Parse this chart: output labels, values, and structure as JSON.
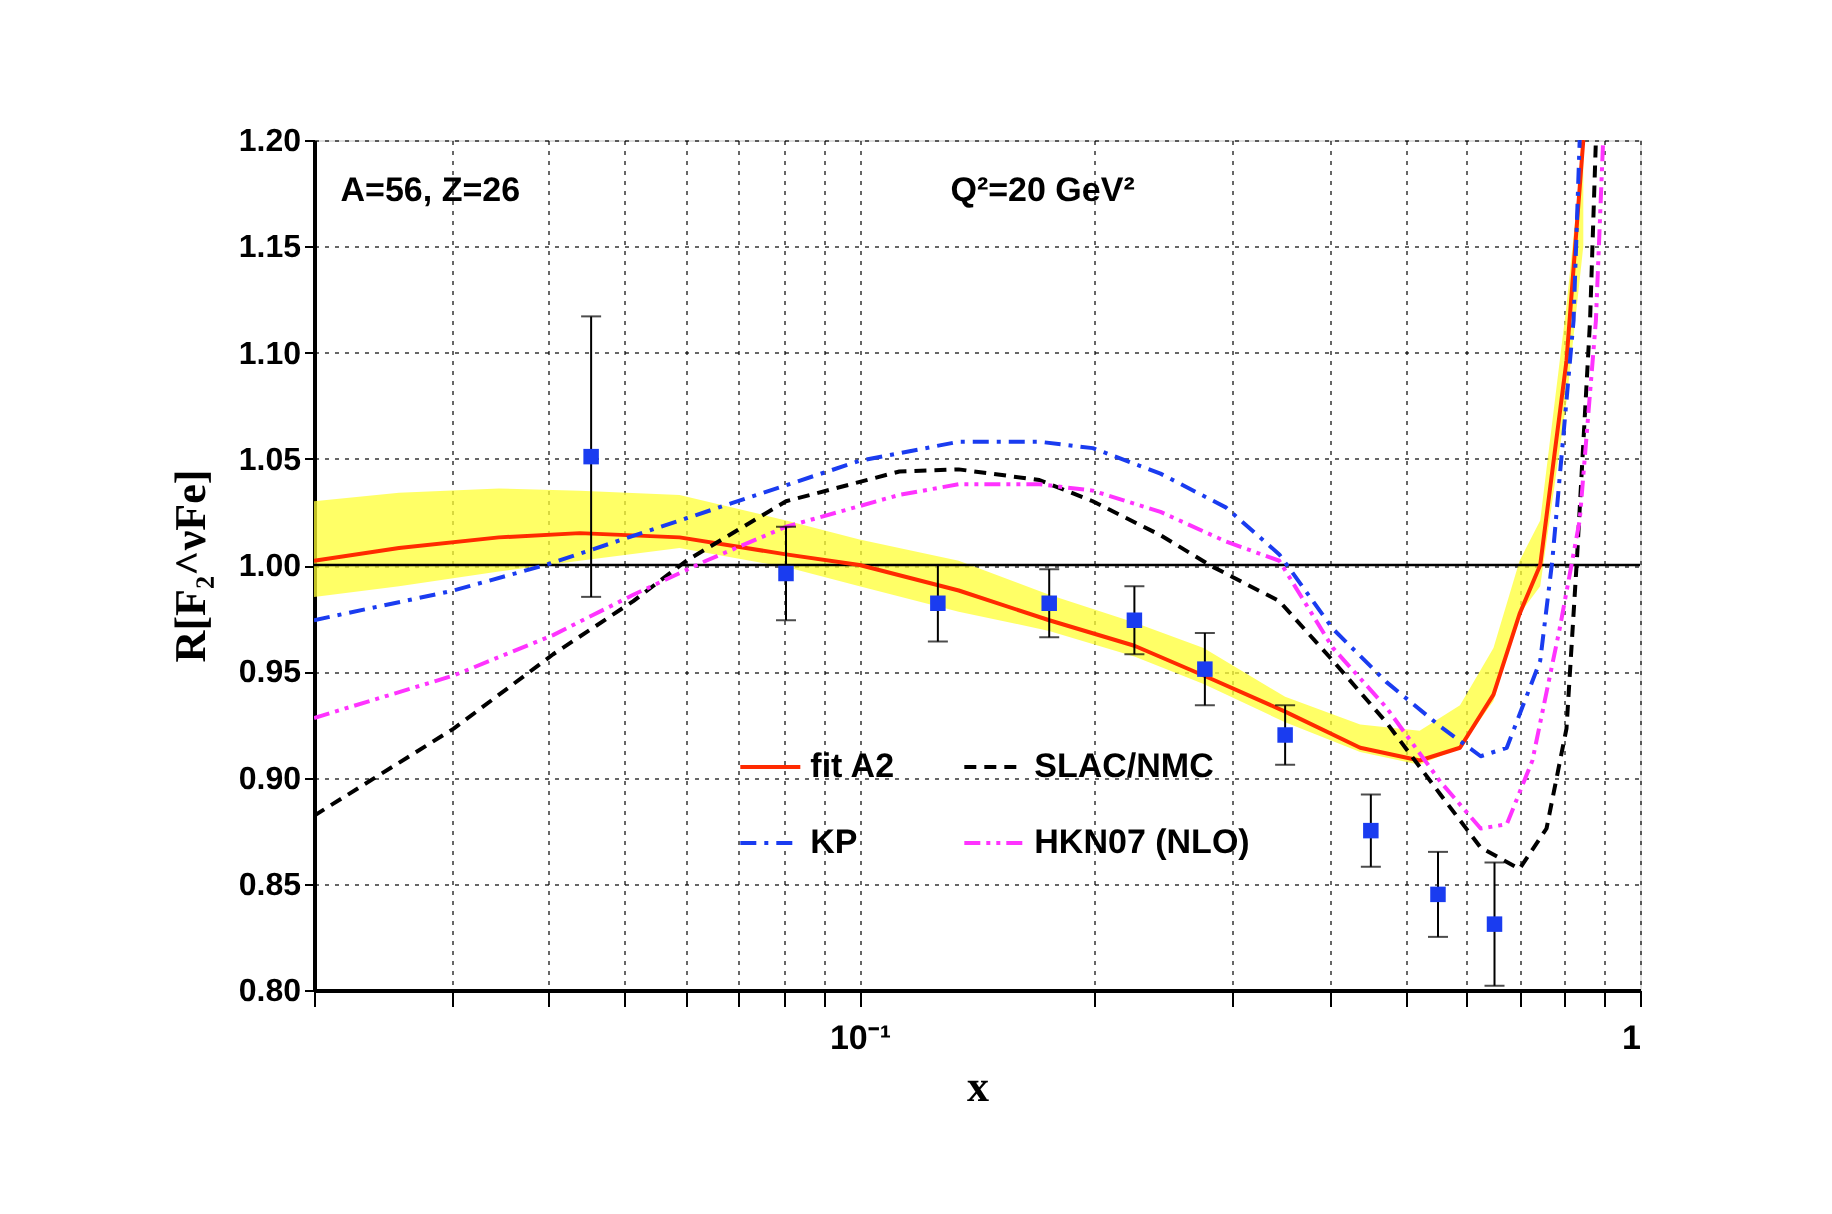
{
  "chart_data": {
    "type": "line",
    "xlabel": "x",
    "ylabel": "R[F₂^νFe]",
    "annotations": [
      "A=56, Z=26",
      "Q²=20 GeV²"
    ],
    "log": "x",
    "grid": true,
    "legend": "bottom",
    "xlim": [
      0.02,
      1
    ],
    "ylim": [
      0.8,
      1.2
    ],
    "xticks": [
      {
        "value": 0.02,
        "label": null
      },
      {
        "value": 0.03,
        "label": null
      },
      {
        "value": 0.04,
        "label": null
      },
      {
        "value": 0.05,
        "label": null
      },
      {
        "value": 0.06,
        "label": null
      },
      {
        "value": 0.07,
        "label": null
      },
      {
        "value": 0.08,
        "label": null
      },
      {
        "value": 0.09,
        "label": null
      },
      {
        "value": 0.1,
        "label": "10⁻¹"
      },
      {
        "value": 0.2,
        "label": null
      },
      {
        "value": 0.3,
        "label": null
      },
      {
        "value": 0.4,
        "label": null
      },
      {
        "value": 0.5,
        "label": null
      },
      {
        "value": 0.6,
        "label": null
      },
      {
        "value": 0.7,
        "label": null
      },
      {
        "value": 0.8,
        "label": null
      },
      {
        "value": 0.9,
        "label": null
      },
      1
    ],
    "yticks": [
      {
        "value": 0.8,
        "label": "0.80"
      },
      {
        "value": 0.85,
        "label": "0.85"
      },
      {
        "value": 0.9,
        "label": "0.90"
      },
      {
        "value": 0.95,
        "label": "0.95"
      },
      {
        "value": 1.0,
        "label": "1.00"
      },
      {
        "value": 1.05,
        "label": "1.05"
      },
      {
        "value": 1.1,
        "label": "1.10"
      },
      {
        "value": 1.15,
        "label": "1.15"
      },
      {
        "value": 1.2,
        "label": "1.20"
      }
    ],
    "ref_lines": [
      {
        "axis": "y",
        "value": 1.0,
        "color": "#000000",
        "line_style": "solid"
      }
    ],
    "series": [
      {
        "name": "fit A2",
        "color": "#ff2a00",
        "line_style": "solid",
        "x": [
          0.02,
          0.0257,
          0.0345,
          0.0438,
          0.0588,
          0.0805,
          0.1,
          0.134,
          0.175,
          0.225,
          0.276,
          0.351,
          0.438,
          0.522,
          0.588,
          0.649,
          0.701,
          0.745,
          0.805,
          0.846
        ],
        "values": [
          1.002,
          1.008,
          1.013,
          1.015,
          1.013,
          1.005,
          1.0,
          0.988,
          0.974,
          0.962,
          0.948,
          0.931,
          0.914,
          0.908,
          0.914,
          0.939,
          0.977,
          1.0,
          1.096,
          1.2
        ],
        "lower": [
          0.985,
          0.99,
          0.997,
          1.002,
          1.008,
          0.999,
          0.99,
          0.978,
          0.969,
          0.957,
          0.944,
          0.926,
          0.912,
          0.906,
          0.914,
          0.936,
          0.977,
          0.99,
          1.077,
          1.15
        ],
        "upper": [
          1.03,
          1.034,
          1.036,
          1.035,
          1.033,
          1.021,
          1.012,
          1.002,
          0.986,
          0.973,
          0.961,
          0.938,
          0.925,
          0.922,
          0.934,
          0.961,
          1.002,
          1.021,
          1.122,
          1.2
        ]
      },
      {
        "name": "KP",
        "color": "#1a3cf0",
        "line_style": "dashdot",
        "x": [
          0.02,
          0.0302,
          0.0396,
          0.06,
          0.1,
          0.134,
          0.17,
          0.199,
          0.243,
          0.295,
          0.345,
          0.404,
          0.473,
          0.555,
          0.625,
          0.675,
          0.745,
          0.772,
          0.822,
          0.837
        ],
        "values": [
          0.974,
          0.988,
          1.0,
          1.022,
          1.049,
          1.058,
          1.058,
          1.055,
          1.043,
          1.027,
          1.005,
          0.97,
          0.945,
          0.924,
          0.91,
          0.914,
          0.955,
          1.002,
          1.115,
          1.2
        ]
      },
      {
        "name": "SLAC/NMC",
        "color": "#000000",
        "line_style": "dashed",
        "x": [
          0.02,
          0.0302,
          0.0405,
          0.0513,
          0.06,
          0.0805,
          0.1125,
          0.134,
          0.17,
          0.199,
          0.243,
          0.284,
          0.345,
          0.404,
          0.473,
          0.555,
          0.625,
          0.701,
          0.759,
          0.805,
          0.83,
          0.863,
          0.878
        ],
        "values": [
          0.882,
          0.923,
          0.958,
          0.983,
          1.002,
          1.03,
          1.044,
          1.045,
          1.04,
          1.03,
          1.014,
          0.999,
          0.983,
          0.955,
          0.926,
          0.892,
          0.867,
          0.857,
          0.876,
          0.923,
          1.002,
          1.115,
          1.2
        ]
      },
      {
        "name": "HKN07 (NLO)",
        "color": "#ff33ff",
        "line_style": "dashdotdot",
        "x": [
          0.02,
          0.0302,
          0.0405,
          0.0513,
          0.0636,
          0.0805,
          0.1125,
          0.134,
          0.17,
          0.199,
          0.243,
          0.295,
          0.345,
          0.404,
          0.473,
          0.555,
          0.625,
          0.675,
          0.728,
          0.789,
          0.837,
          0.878,
          0.897
        ],
        "values": [
          0.928,
          0.948,
          0.967,
          0.986,
          1.002,
          1.018,
          1.033,
          1.038,
          1.038,
          1.035,
          1.025,
          1.011,
          1.002,
          0.961,
          0.933,
          0.898,
          0.876,
          0.878,
          0.908,
          0.97,
          1.021,
          1.115,
          1.2
        ]
      },
      {
        "type": "scatter",
        "color": "#1a3cf0",
        "marker": "square",
        "x": [
          0.0453,
          0.0805,
          0.126,
          0.175,
          0.225,
          0.277,
          0.351,
          0.452,
          0.551,
          0.651
        ],
        "values": [
          1.051,
          0.996,
          0.982,
          0.982,
          0.974,
          0.951,
          0.92,
          0.875,
          0.845,
          0.831
        ],
        "errors": [
          0.066,
          0.022,
          0.018,
          0.016,
          0.016,
          0.017,
          0.014,
          0.017,
          0.02,
          0.029
        ]
      }
    ]
  }
}
